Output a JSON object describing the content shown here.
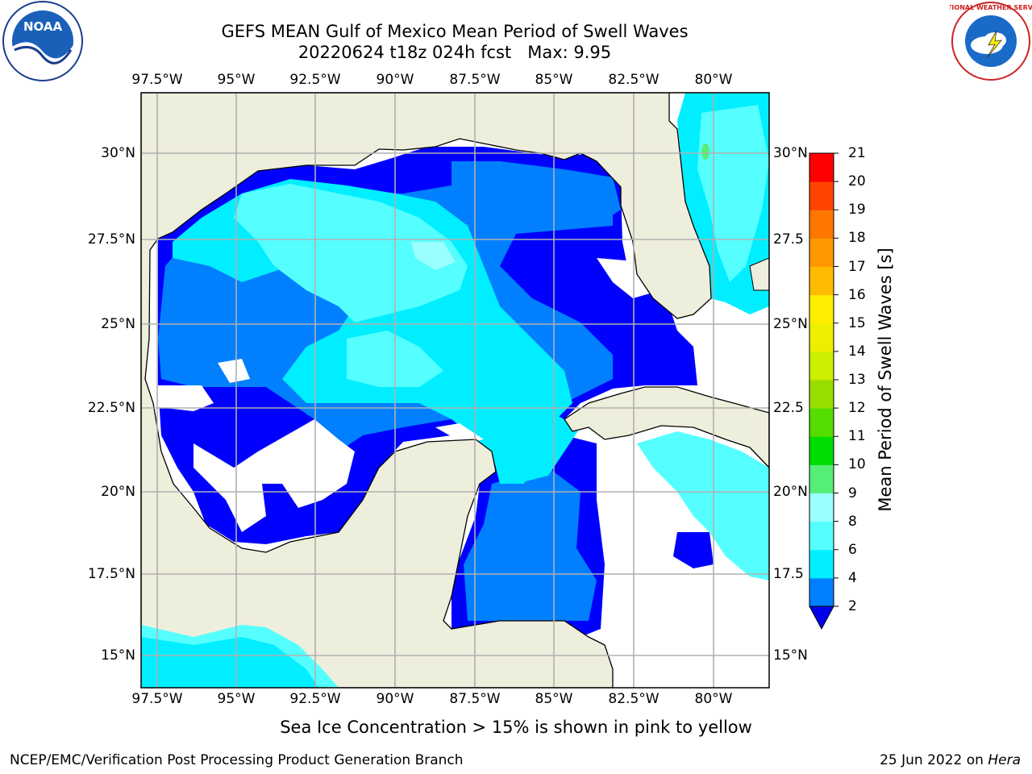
{
  "title": {
    "line1": "GEFS MEAN Gulf of Mexico Mean Period of Swell Waves",
    "line2": "20220624 t18z 024h fcst   Max: 9.95"
  },
  "map": {
    "lon_ticks": [
      "97.5°W",
      "95°W",
      "92.5°W",
      "90°W",
      "87.5°W",
      "85°W",
      "82.5°W",
      "80°W"
    ],
    "lat_ticks_left": [
      "30°N",
      "27.5°N",
      "25°N",
      "22.5°N",
      "20°N",
      "17.5°N",
      "15°N"
    ],
    "lat_ticks_right": [
      "30°N",
      "27.5",
      "25°N",
      "22.5",
      "20°N",
      "17.5",
      "15°N"
    ],
    "lon_range": [
      -98,
      -78.2
    ],
    "lat_range": [
      14,
      31.8
    ],
    "colors": {
      "land": "#eeeedc",
      "ocean_missing": "#ffffff",
      "grid": "#b0b0b0",
      "coast": "#000000"
    }
  },
  "colorbar": {
    "label": "Mean Period of Swell Waves [s]",
    "levels": [
      "2",
      "4",
      "6",
      "8",
      "9",
      "10",
      "11",
      "12",
      "13",
      "14",
      "15",
      "16",
      "17",
      "18",
      "19",
      "20",
      "21"
    ],
    "colors": [
      "#0000ff",
      "#0080ff",
      "#00eeff",
      "#55ffff",
      "#99ffff",
      "#55ee77",
      "#00dd00",
      "#55dd00",
      "#99dd00",
      "#ccee00",
      "#eeee00",
      "#ffee00",
      "#ffbb00",
      "#ff9900",
      "#ff7700",
      "#ff4400",
      "#ff0000"
    ],
    "extend": "min",
    "extend_color": "#0000ee"
  },
  "chart_data": {
    "type": "heatmap",
    "variable": "Mean Period of Swell Waves [s]",
    "max": 9.95,
    "colorbar_levels": [
      2,
      4,
      6,
      8,
      9,
      10,
      11,
      12,
      13,
      14,
      15,
      16,
      17,
      18,
      19,
      20,
      21
    ]
  },
  "note": "Sea Ice Concentration > 15% is shown in pink to yellow",
  "footer": {
    "left": "NCEP/EMC/Verification Post Processing Product Generation Branch",
    "right_date": "25 Jun 2022 on ",
    "right_host": "Hera"
  },
  "logos": {
    "noaa": "NOAA",
    "nws": "NATIONAL WEATHER SERVICE"
  }
}
